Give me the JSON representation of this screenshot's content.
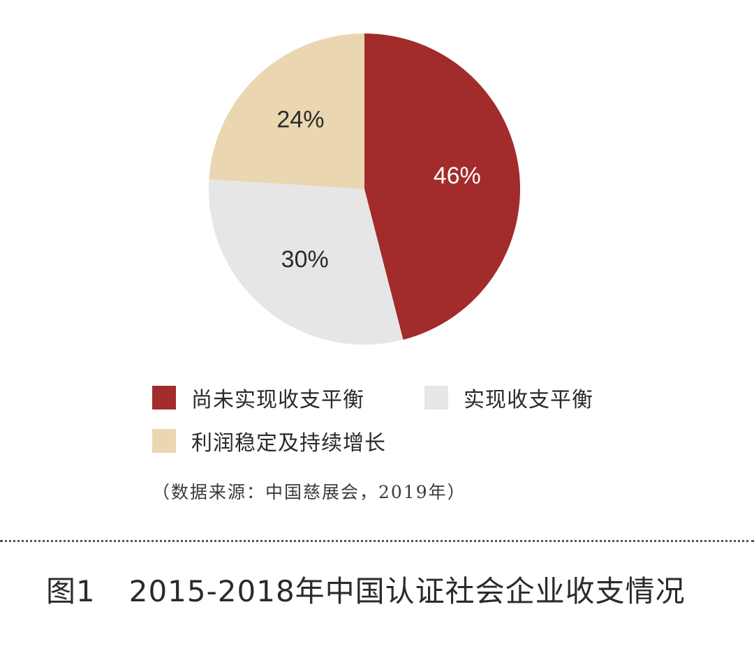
{
  "chart_data": {
    "type": "pie",
    "categories": [
      "尚未实现收支平衡",
      "实现收支平衡",
      "利润稳定及持续增长"
    ],
    "values": [
      46,
      30,
      24
    ],
    "labels": [
      "46%",
      "30%",
      "24%"
    ],
    "colors": [
      "#a12c2b",
      "#e7e6e6",
      "#ead6b0"
    ],
    "label_colors": [
      "#ffffff",
      "#2a2a2a",
      "#2a2a2a"
    ],
    "start_angle_deg": 0,
    "direction": "clockwise",
    "legend": [
      {
        "label": "尚未实现收支平衡",
        "color": "#a12c2b"
      },
      {
        "label": "实现收支平衡",
        "color": "#e7e6e6"
      },
      {
        "label": "利润稳定及持续增长",
        "color": "#ead6b0"
      }
    ],
    "legend_placement": "bottom"
  },
  "source_note": "（数据来源：中国慈展会，2019年）",
  "caption": {
    "figure_id": "图1",
    "title": "2015-2018年中国认证社会企业收支情况"
  }
}
